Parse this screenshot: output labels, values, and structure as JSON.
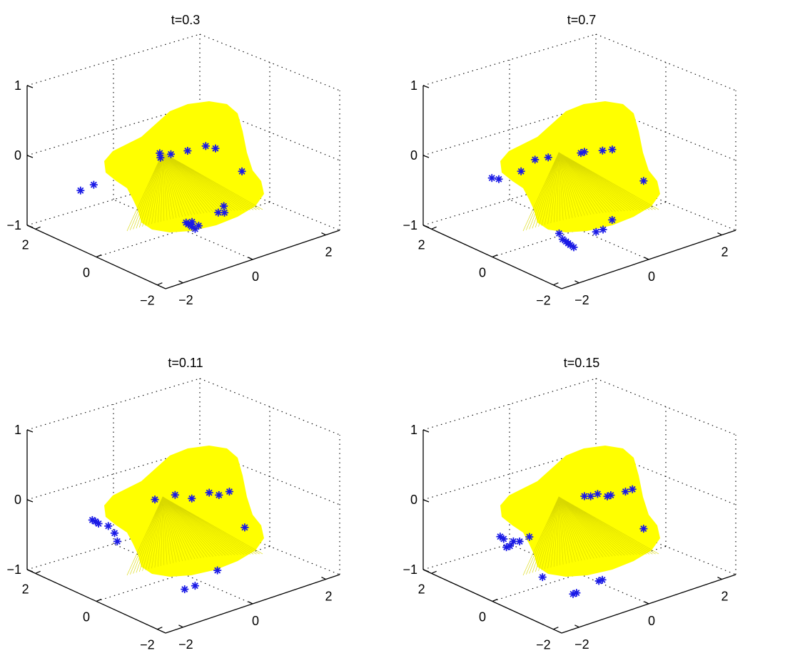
{
  "chart_data": [
    {
      "type": "surface3d",
      "title": "t=0.3",
      "zticks": [
        "1",
        "0",
        "−1"
      ],
      "yticks": [
        "2",
        "0",
        "−2"
      ],
      "xticks": [
        "−2",
        "0",
        "2"
      ],
      "zlim": [
        -1,
        1
      ],
      "xlim": [
        -2.5,
        2.5
      ],
      "ylim": [
        -2.5,
        2.5
      ],
      "markers": [
        [
          -2.0,
          1.2,
          -0.35
        ],
        [
          -1.7,
          1.1,
          -0.3
        ],
        [
          -0.6,
          0.1,
          0.15
        ],
        [
          -0.5,
          0.2,
          0.05
        ],
        [
          -0.2,
          0.2,
          0.05
        ],
        [
          0.2,
          0.1,
          0.05
        ],
        [
          0.8,
          0.2,
          0.0
        ],
        [
          1.0,
          0.1,
          -0.05
        ],
        [
          -0.4,
          -0.6,
          -0.75
        ],
        [
          -0.3,
          -0.55,
          -0.8
        ],
        [
          -0.25,
          -0.6,
          -0.8
        ],
        [
          -0.2,
          -0.55,
          -0.85
        ],
        [
          -0.15,
          -0.5,
          -0.8
        ],
        [
          -0.1,
          -0.55,
          -0.9
        ],
        [
          0.2,
          -0.3,
          -0.95
        ],
        [
          1.0,
          0.0,
          -0.95
        ],
        [
          1.1,
          -0.1,
          -0.95
        ],
        [
          1.2,
          0.05,
          -0.9
        ],
        [
          2.0,
          0.4,
          -0.6
        ]
      ]
    },
    {
      "type": "surface3d",
      "title": "t=0.7",
      "zticks": [
        "1",
        "0",
        "−1"
      ],
      "yticks": [
        "2",
        "0",
        "−2"
      ],
      "xticks": [
        "−2",
        "0",
        "2"
      ],
      "zlim": [
        -1,
        1
      ],
      "xlim": [
        -2.5,
        2.5
      ],
      "ylim": [
        -2.5,
        2.5
      ],
      "markers": [
        [
          -1.8,
          0.9,
          -0.15
        ],
        [
          -1.6,
          0.9,
          -0.2
        ],
        [
          -1.2,
          0.6,
          -0.1
        ],
        [
          -0.8,
          0.6,
          0.0
        ],
        [
          -0.5,
          0.5,
          0.0
        ],
        [
          0.2,
          0.2,
          0.0
        ],
        [
          0.3,
          0.2,
          0.0
        ],
        [
          0.9,
          0.3,
          -0.1
        ],
        [
          1.1,
          0.2,
          -0.1
        ],
        [
          -1.3,
          -0.9,
          -0.7
        ],
        [
          -1.2,
          -0.9,
          -0.8
        ],
        [
          -1.1,
          -0.9,
          -0.85
        ],
        [
          -1.0,
          -0.85,
          -0.9
        ],
        [
          -0.9,
          -0.8,
          -0.95
        ],
        [
          -0.8,
          -0.8,
          -1.0
        ],
        [
          0.0,
          -0.6,
          -0.95
        ],
        [
          0.2,
          -0.6,
          -0.95
        ],
        [
          0.7,
          -0.3,
          -0.95
        ],
        [
          2.0,
          0.2,
          -0.7
        ]
      ]
    },
    {
      "type": "surface3d",
      "title": "t=0.11",
      "zticks": [
        "1",
        "0",
        "−1"
      ],
      "yticks": [
        "2",
        "0",
        "−2"
      ],
      "xticks": [
        "−2",
        "0",
        "2"
      ],
      "zlim": [
        -1,
        1
      ],
      "xlim": [
        -2.5,
        2.5
      ],
      "ylim": [
        -2.5,
        2.5
      ],
      "markers": [
        [
          -1.9,
          0.9,
          -0.1
        ],
        [
          -1.85,
          0.85,
          -0.12
        ],
        [
          -1.8,
          0.8,
          -0.15
        ],
        [
          -1.6,
          0.7,
          -0.2
        ],
        [
          -1.5,
          0.6,
          -0.3
        ],
        [
          -1.5,
          0.5,
          -0.4
        ],
        [
          -0.5,
          0.4,
          0.05
        ],
        [
          0.0,
          0.3,
          0.05
        ],
        [
          0.4,
          0.2,
          -0.05
        ],
        [
          0.9,
          0.2,
          -0.05
        ],
        [
          1.1,
          0.1,
          -0.1
        ],
        [
          1.4,
          0.1,
          -0.1
        ],
        [
          -0.6,
          -0.8,
          -1.0
        ],
        [
          -0.3,
          -0.8,
          -1.0
        ],
        [
          0.5,
          -0.6,
          -0.95
        ],
        [
          2.0,
          0.3,
          -0.75
        ]
      ]
    },
    {
      "type": "surface3d",
      "title": "t=0.15",
      "zticks": [
        "1",
        "0",
        "−1"
      ],
      "yticks": [
        "2",
        "0",
        "−2"
      ],
      "xticks": [
        "−2",
        "0",
        "2"
      ],
      "zlim": [
        -1,
        1
      ],
      "xlim": [
        -2.5,
        2.5
      ],
      "ylim": [
        -2.5,
        2.5
      ],
      "markers": [
        [
          -1.8,
          0.6,
          -0.3
        ],
        [
          -1.7,
          0.6,
          -0.35
        ],
        [
          -1.7,
          0.5,
          -0.45
        ],
        [
          -1.6,
          0.5,
          -0.45
        ],
        [
          -1.5,
          0.5,
          -0.4
        ],
        [
          -1.4,
          0.4,
          -0.4
        ],
        [
          -1.2,
          0.3,
          -0.35
        ],
        [
          -1.3,
          -0.3,
          -0.8
        ],
        [
          -0.9,
          -0.9,
          -1.0
        ],
        [
          -0.8,
          -0.9,
          -1.0
        ],
        [
          0.0,
          -0.7,
          -1.0
        ],
        [
          0.1,
          -0.7,
          -1.0
        ],
        [
          0.3,
          0.2,
          0.0
        ],
        [
          0.4,
          0.1,
          0.0
        ],
        [
          0.6,
          0.1,
          0.0
        ],
        [
          0.8,
          0.0,
          -0.05
        ],
        [
          0.9,
          0.0,
          -0.05
        ],
        [
          1.4,
          0.1,
          -0.1
        ],
        [
          1.6,
          0.1,
          -0.1
        ],
        [
          2.0,
          0.2,
          -0.75
        ]
      ]
    }
  ]
}
